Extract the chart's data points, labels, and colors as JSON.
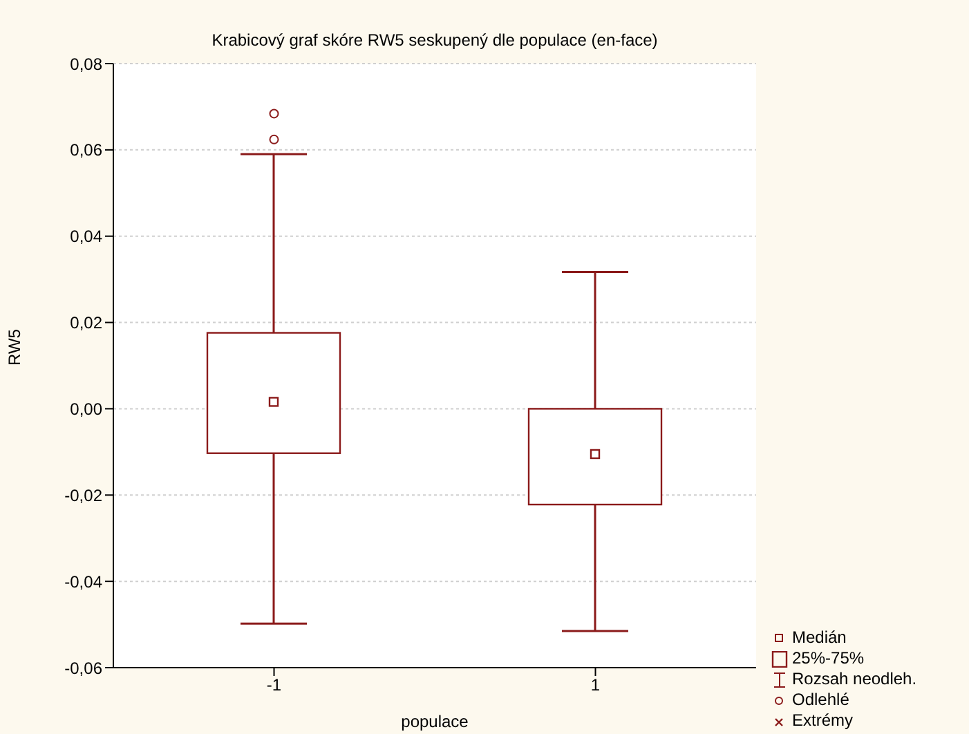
{
  "chart_data": {
    "type": "box",
    "title": "Krabicový graf skóre RW5 seskupený dle populace (en-face)",
    "xlabel": "populace",
    "ylabel": "RW5",
    "categories": [
      "-1",
      "1"
    ],
    "series": [
      {
        "color": "#8b1a1a",
        "boxes": [
          {
            "low": -0.0498,
            "q1": -0.0103,
            "median": 0.0016,
            "q3": 0.0176,
            "high": 0.059,
            "outliers": [
              0.0624,
              0.0684
            ]
          },
          {
            "low": -0.0515,
            "q1": -0.0222,
            "median": -0.0105,
            "q3": 0.0,
            "high": 0.0317
          }
        ]
      }
    ],
    "ylim": [
      -0.06,
      0.08
    ],
    "yticks": [
      {
        "value": -0.06,
        "label": "-0,06"
      },
      {
        "value": -0.04,
        "label": "-0,04"
      },
      {
        "value": -0.02,
        "label": "-0,02"
      },
      {
        "value": 0,
        "label": "0,00"
      },
      {
        "value": 0.02,
        "label": "0,02"
      },
      {
        "value": 0.04,
        "label": "0,04"
      },
      {
        "value": 0.06,
        "label": "0,06"
      },
      {
        "value": 0.08,
        "label": "0,08"
      }
    ],
    "grid": "y",
    "annotations": [
      "Medián",
      "25%-75%",
      "Rozsah neodleh.",
      "Odlehlé",
      "Extrémy"
    ]
  }
}
